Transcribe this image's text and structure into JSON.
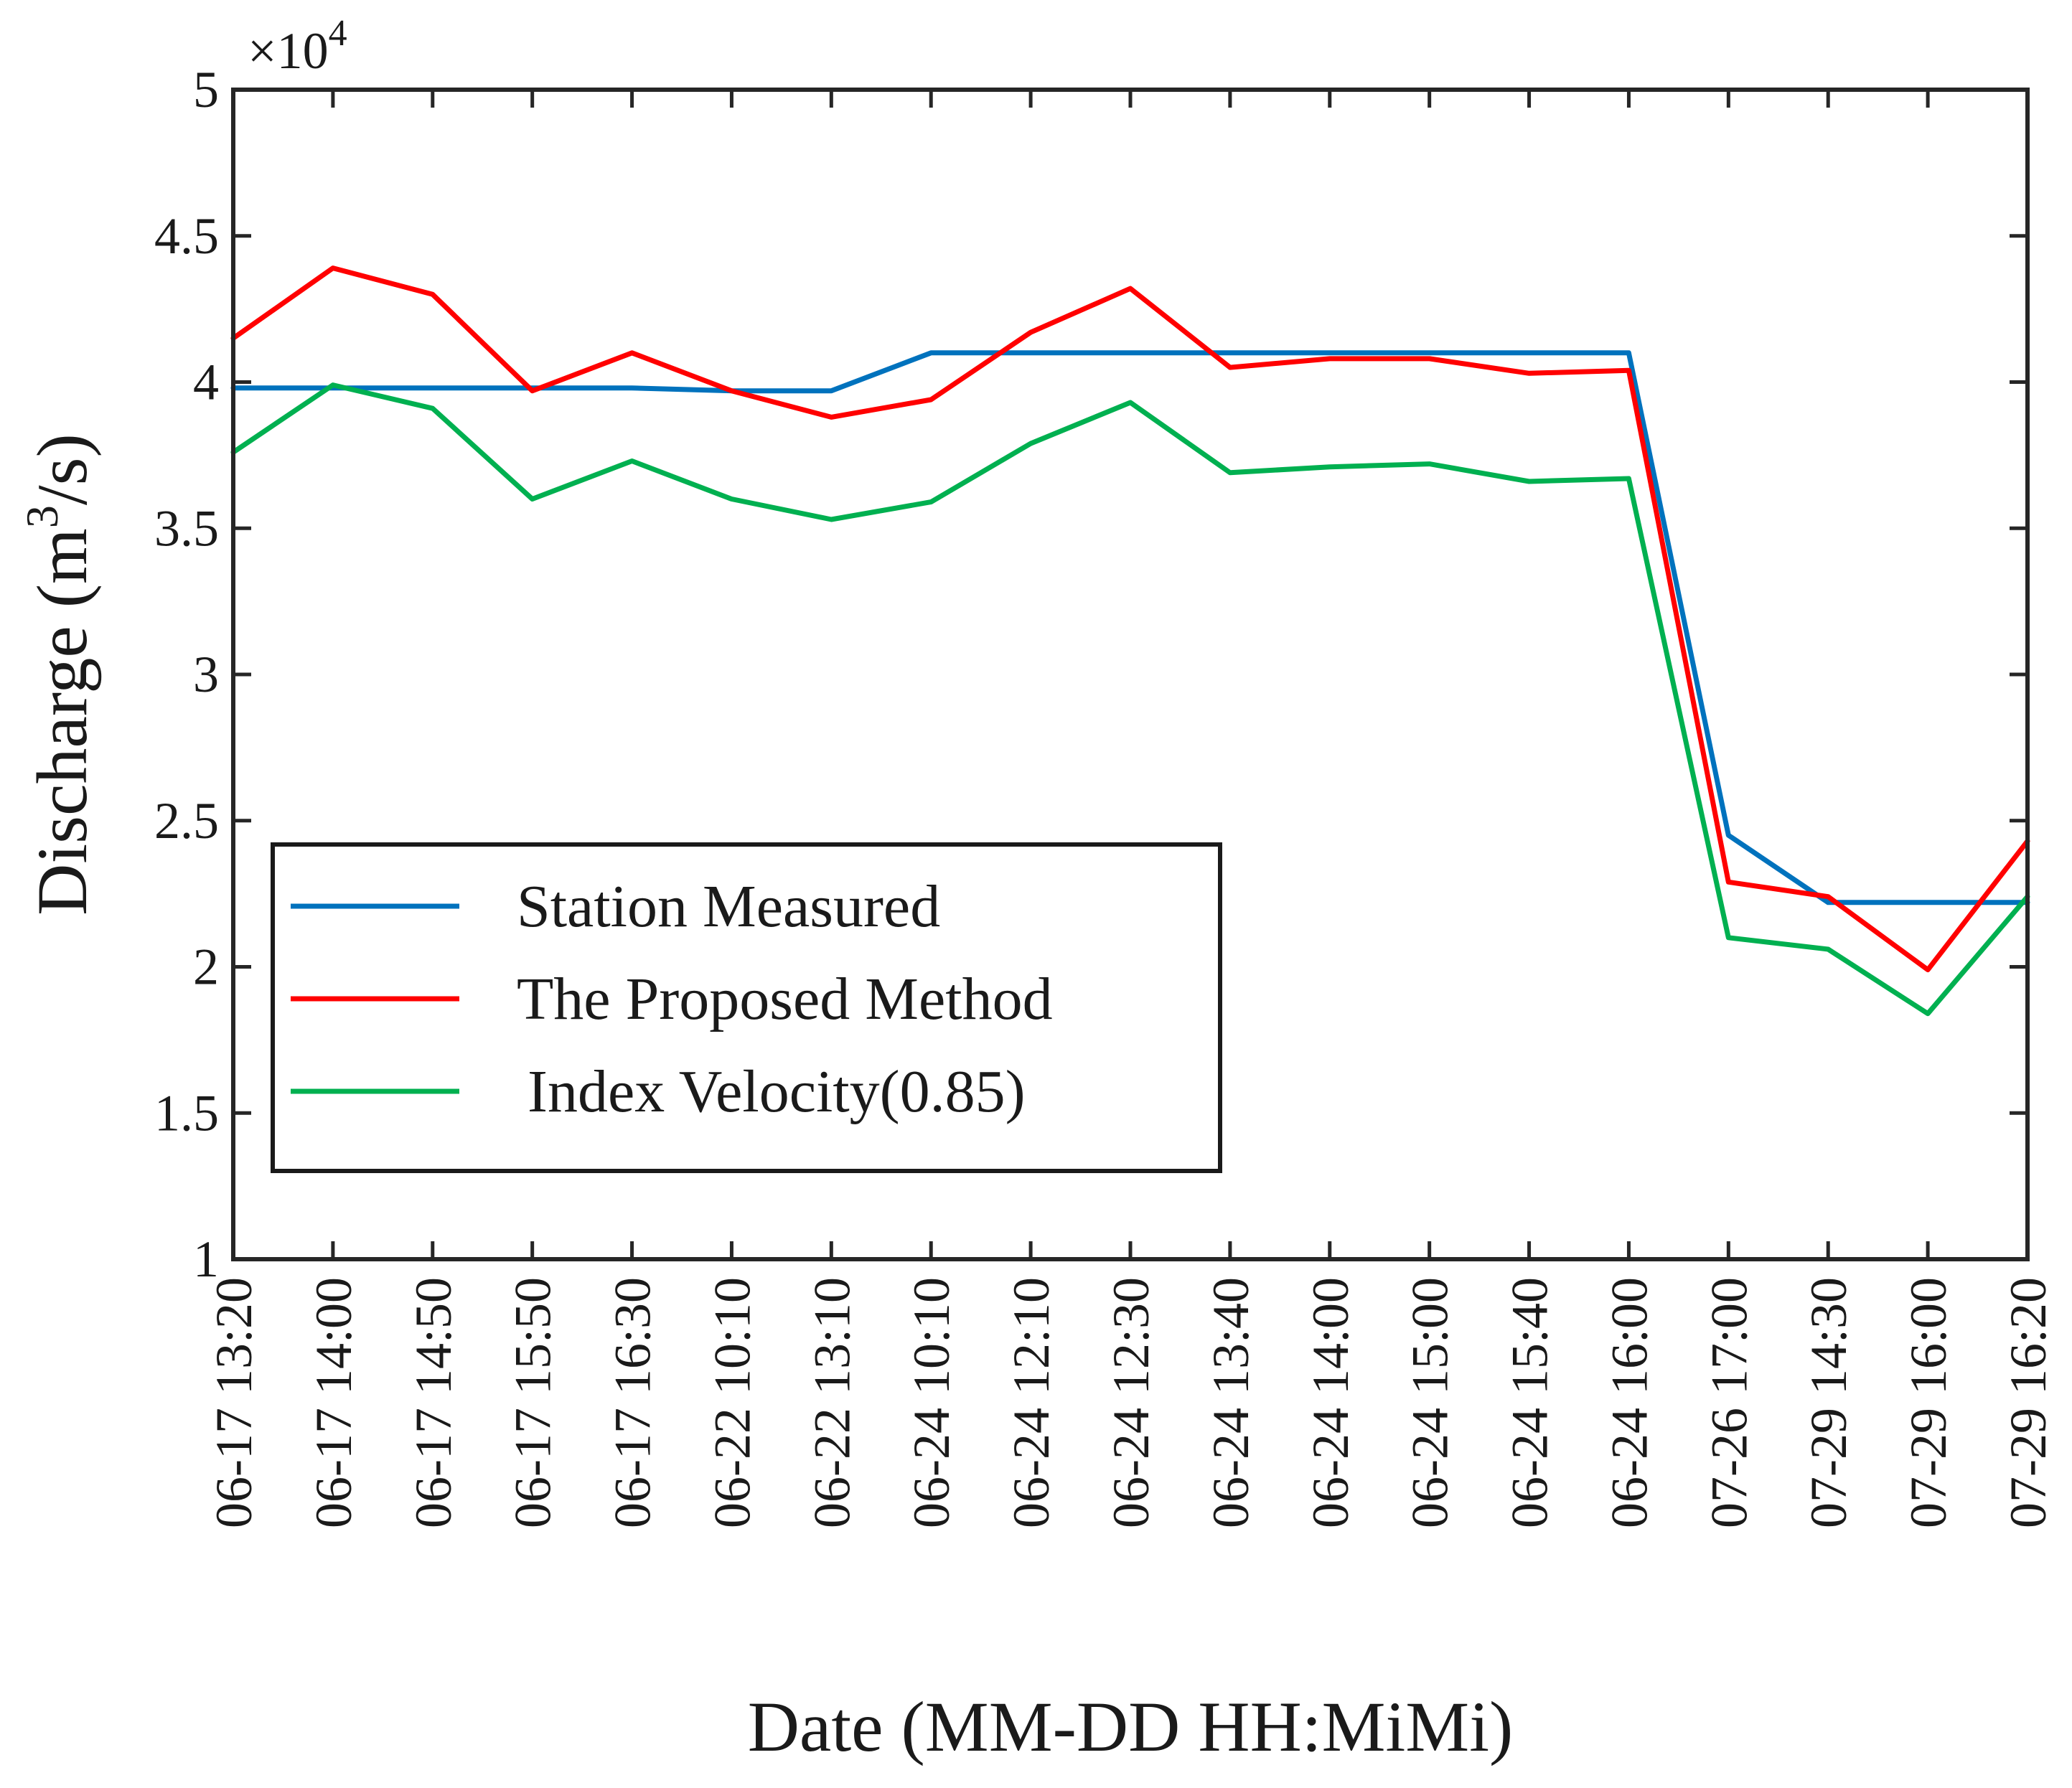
{
  "chart_data": {
    "type": "line",
    "title": "",
    "xlabel": "Date (MM-DD HH:MiMi)",
    "ylabel": "Discharge (m³/s)",
    "ylabel_main": "Discharge (m",
    "ylabel_sup": "3",
    "ylabel_tail": "/s)",
    "y_scale_exponent_label": "×10",
    "y_scale_exponent_power": "4",
    "ylim": [
      1,
      5
    ],
    "yticks": [
      1,
      1.5,
      2,
      2.5,
      3,
      3.5,
      4,
      4.5,
      5
    ],
    "ytick_labels": [
      "1",
      "1.5",
      "2",
      "2.5",
      "3",
      "3.5",
      "4",
      "4.5",
      "5"
    ],
    "categories": [
      "06-17 13:20",
      "06-17 14:00",
      "06-17 14:50",
      "06-17 15:50",
      "06-17 16:30",
      "06-22 10:10",
      "06-22 13:10",
      "06-24 10:10",
      "06-24 12:10",
      "06-24 12:30",
      "06-24 13:40",
      "06-24 14:00",
      "06-24 15:00",
      "06-24 15:40",
      "06-24 16:00",
      "07-26 17:00",
      "07-29 14:30",
      "07-29 16:00",
      "07-29 16:20"
    ],
    "series": [
      {
        "name": "Station Measured",
        "color": "#0072BD",
        "values": [
          3.98,
          3.98,
          3.98,
          3.98,
          3.98,
          3.97,
          3.97,
          4.1,
          4.1,
          4.1,
          4.1,
          4.1,
          4.1,
          4.1,
          4.1,
          2.45,
          2.22,
          2.22,
          2.22
        ]
      },
      {
        "name": "The Proposed Method",
        "color": "#FF0000",
        "values": [
          4.15,
          4.39,
          4.3,
          3.97,
          4.1,
          3.97,
          3.88,
          3.94,
          4.17,
          4.32,
          4.05,
          4.08,
          4.08,
          4.03,
          4.04,
          2.29,
          2.24,
          1.99,
          2.43
        ]
      },
      {
        "name": "Index Velocity(0.85)",
        "color": "#00B050",
        "values": [
          3.76,
          3.99,
          3.91,
          3.6,
          3.73,
          3.6,
          3.53,
          3.59,
          3.79,
          3.93,
          3.69,
          3.71,
          3.72,
          3.66,
          3.67,
          2.1,
          2.06,
          1.84,
          2.24
        ]
      }
    ],
    "grid": false,
    "legend_position": "lower-left"
  }
}
